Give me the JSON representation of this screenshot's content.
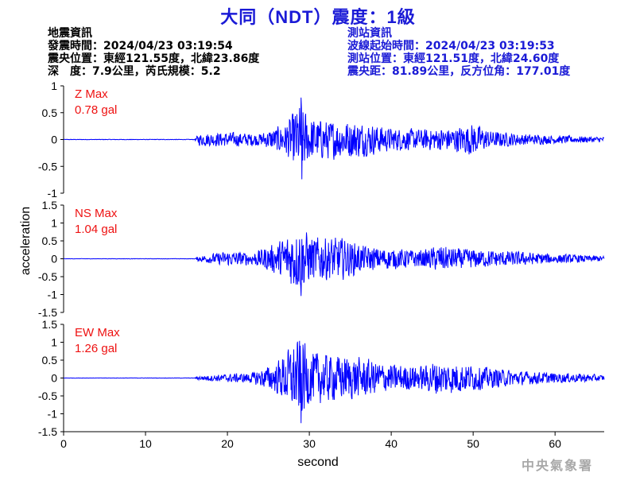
{
  "header": {
    "title": "大同（NDT）震度：1級",
    "left_info": [
      "地震資訊",
      "發震時間：2024/04/23 03:19:54",
      "震央位置：東經121.55度，北緯23.86度",
      "深　度：7.9公里，芮氏規模：5.2"
    ],
    "right_info": [
      "測站資訊",
      "波線起始時間：2024/04/23 03:19:53",
      "測站位置：東經121.51度，北緯24.60度",
      "震央距：81.89公里，反方位角：177.01度"
    ]
  },
  "footer": {
    "agency": "中央氣象署"
  },
  "chart_data": {
    "type": "line",
    "title": "大同（NDT）震度：1級",
    "xlabel": "second",
    "ylabel": "acceleration",
    "xlim": [
      0,
      66
    ],
    "x_ticks": [
      0,
      10,
      20,
      30,
      40,
      50,
      60
    ],
    "line_color": "#0000ff",
    "label_color": "#ee1111",
    "grid": false,
    "panels": [
      {
        "name": "Z",
        "label": "Z Max",
        "max_text": "0.78 gal",
        "ylim": [
          -1,
          1
        ],
        "y_ticks": [
          1,
          0.5,
          0,
          -0.5,
          -1
        ],
        "y_tick_labels": [
          "1",
          "0.5",
          "0",
          "-0.5",
          "-1"
        ],
        "peak": 0.78,
        "envelope": {
          "x": [
            0,
            16,
            16.5,
            20,
            24,
            27,
            28.2,
            29,
            30,
            32,
            36,
            40,
            44,
            48,
            50,
            52,
            56,
            60,
            64,
            66
          ],
          "amplitude": [
            0.004,
            0.005,
            0.12,
            0.14,
            0.12,
            0.3,
            0.55,
            0.72,
            0.42,
            0.38,
            0.35,
            0.22,
            0.2,
            0.24,
            0.32,
            0.17,
            0.11,
            0.08,
            0.06,
            0.05
          ]
        }
      },
      {
        "name": "NS",
        "label": "NS Max",
        "max_text": "1.04 gal",
        "ylim": [
          -1.5,
          1.5
        ],
        "y_ticks": [
          1.5,
          1,
          0.5,
          0,
          -0.5,
          -1,
          -1.5
        ],
        "y_tick_labels": [
          "1.5",
          "1",
          "0.5",
          "0",
          "-0.5",
          "-1",
          "-1.5"
        ],
        "peak": 1.04,
        "envelope": {
          "x": [
            0,
            16,
            16.5,
            20,
            23,
            26,
            28,
            29,
            30,
            31,
            34,
            37,
            40,
            44,
            46,
            48,
            52,
            56,
            60,
            64,
            66
          ],
          "amplitude": [
            0.004,
            0.005,
            0.08,
            0.22,
            0.18,
            0.45,
            0.85,
            0.95,
            0.7,
            0.65,
            0.6,
            0.35,
            0.3,
            0.25,
            0.4,
            0.3,
            0.25,
            0.2,
            0.14,
            0.1,
            0.08
          ]
        }
      },
      {
        "name": "EW",
        "label": "EW Max",
        "max_text": "1.26 gal",
        "ylim": [
          -1.5,
          1.5
        ],
        "y_ticks": [
          1.5,
          1,
          0.5,
          0,
          -0.5,
          -1,
          -1.5
        ],
        "y_tick_labels": [
          "1.5",
          "1",
          "0.5",
          "0",
          "-0.5",
          "-1",
          "-1.5"
        ],
        "peak": 1.26,
        "envelope": {
          "x": [
            0,
            16,
            16.5,
            20,
            23,
            26,
            28,
            29,
            30,
            32,
            36,
            40,
            44,
            45,
            48,
            52,
            56,
            60,
            64,
            66
          ],
          "amplitude": [
            0.004,
            0.005,
            0.06,
            0.12,
            0.15,
            0.45,
            1.0,
            1.2,
            0.8,
            0.7,
            0.6,
            0.4,
            0.35,
            0.5,
            0.45,
            0.3,
            0.2,
            0.15,
            0.12,
            0.08
          ]
        }
      }
    ]
  }
}
